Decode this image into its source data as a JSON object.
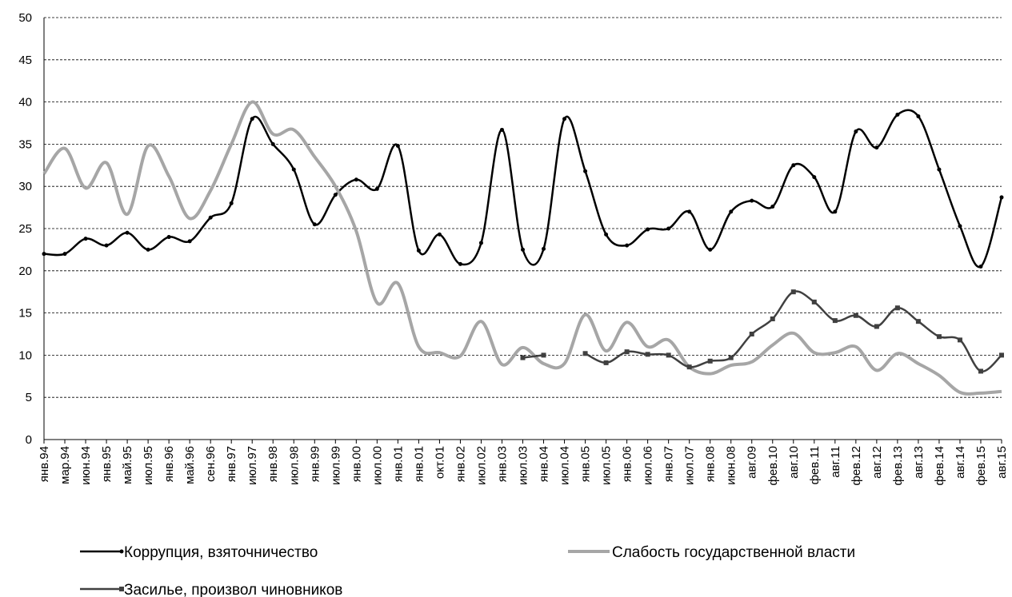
{
  "chart_data": {
    "type": "line",
    "categories": [
      "янв.94",
      "мар.94",
      "июн.94",
      "янв.95",
      "май.95",
      "июл.95",
      "янв.96",
      "май.96",
      "сен.96",
      "янв.97",
      "июл.97",
      "янв.98",
      "июл.98",
      "янв.99",
      "июл.99",
      "янв.00",
      "июл.00",
      "янв.01",
      "янв.01",
      "окт.01",
      "янв.02",
      "июл.02",
      "янв.03",
      "июл.03",
      "янв.04",
      "июл.04",
      "янв.05",
      "июл.05",
      "янв.06",
      "июл.06",
      "янв.07",
      "июл.07",
      "янв.08",
      "июн.08",
      "авг.09",
      "фев.10",
      "авг.10",
      "фев.11",
      "авг.11",
      "фев.12",
      "авг.12",
      "фев.13",
      "авг.13",
      "фев.14",
      "авг.14",
      "фев.15",
      "авг.15"
    ],
    "series": [
      {
        "name": "Коррупция, взяточничество",
        "color": "#000000",
        "marker": "circle",
        "values": [
          22,
          22,
          23.8,
          23,
          24.5,
          22.5,
          24,
          23.5,
          26.3,
          28,
          38,
          35,
          32,
          25.5,
          29,
          30.8,
          29.7,
          34.8,
          22.4,
          24.3,
          20.8,
          23.3,
          36.7,
          22.5,
          22.6,
          38,
          31.8,
          24.3,
          23,
          24.9,
          25,
          27,
          22.5,
          27,
          28.3,
          27.6,
          32.5,
          31.1,
          27,
          36.5,
          34.6,
          38.5,
          38.3,
          32,
          25.3,
          20.5,
          28.7
        ]
      },
      {
        "name": "Слабость государственной власти",
        "color": "#a6a6a6",
        "marker": "none",
        "values": [
          31.5,
          34.5,
          29.8,
          32.8,
          26.7,
          34.8,
          31.2,
          26.2,
          29.5,
          35,
          40,
          36.2,
          36.7,
          33.5,
          30,
          24.7,
          16.2,
          18.5,
          11,
          10.3,
          9.9,
          14,
          8.9,
          10.9,
          9,
          9,
          14.8,
          10.5,
          13.9,
          11,
          11.8,
          8.6,
          7.8,
          8.8,
          9.2,
          11.2,
          12.6,
          10.3,
          10.3,
          11,
          8.2,
          10.2,
          9,
          7.6,
          5.6,
          5.5,
          5.7
        ]
      },
      {
        "name": "Засилье, произвол чиновников",
        "color": "#404040",
        "marker": "square",
        "values": [
          null,
          null,
          null,
          null,
          null,
          null,
          null,
          null,
          null,
          null,
          null,
          null,
          null,
          null,
          null,
          null,
          null,
          null,
          null,
          null,
          null,
          null,
          null,
          9.7,
          10,
          null,
          10.2,
          9.1,
          10.4,
          10.1,
          10,
          8.6,
          9.3,
          9.7,
          12.5,
          14.3,
          17.5,
          16.3,
          14.1,
          14.7,
          13.4,
          15.6,
          14,
          12.2,
          11.8,
          8.1,
          10
        ]
      }
    ],
    "ylim": [
      0,
      50
    ],
    "yticks": [
      0,
      5,
      10,
      15,
      20,
      25,
      30,
      35,
      40,
      45,
      50
    ],
    "grid": true
  }
}
